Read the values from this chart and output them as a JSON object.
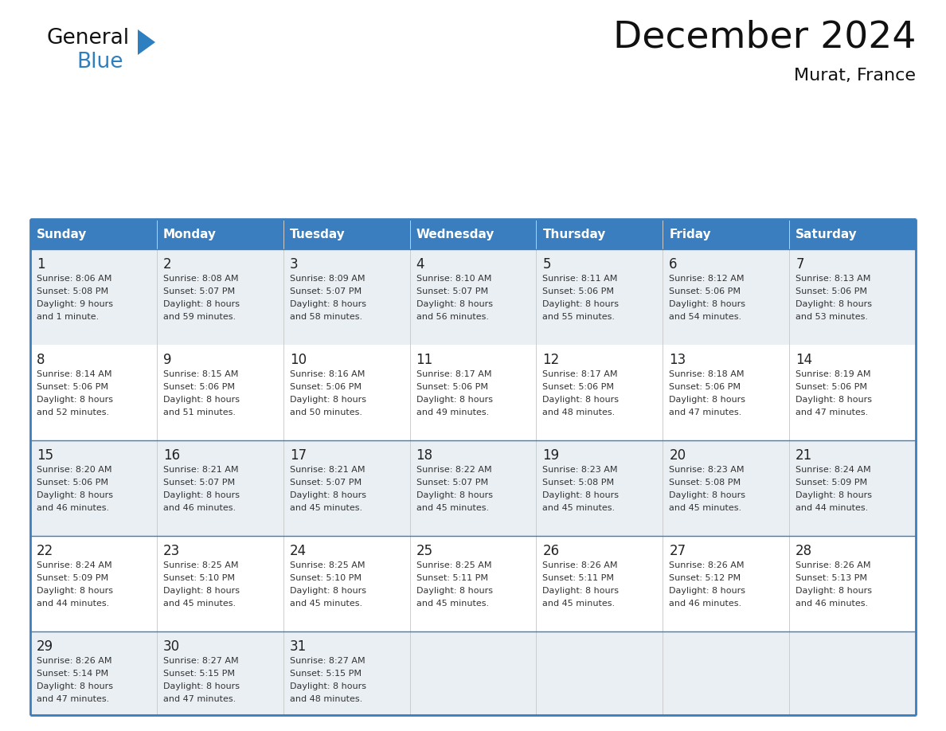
{
  "title": "December 2024",
  "subtitle": "Murat, France",
  "header_color": "#3a7ebf",
  "header_text_color": "#FFFFFF",
  "day_names": [
    "Sunday",
    "Monday",
    "Tuesday",
    "Wednesday",
    "Thursday",
    "Friday",
    "Saturday"
  ],
  "cell_bg_even": "#EAEFF4",
  "cell_bg_odd": "#FFFFFF",
  "border_color": "#3a7ebf",
  "inner_line_color": "#3a7ebf",
  "day_num_color": "#222222",
  "text_color": "#333333",
  "logo_general_color": "#111111",
  "logo_blue_color": "#2E7FBF",
  "logo_triangle_color": "#2E7FBF",
  "days": [
    {
      "day": 1,
      "col": 0,
      "row": 0,
      "sunrise": "8:06 AM",
      "sunset": "5:08 PM",
      "dl1": "Daylight: 9 hours",
      "dl2": "and 1 minute."
    },
    {
      "day": 2,
      "col": 1,
      "row": 0,
      "sunrise": "8:08 AM",
      "sunset": "5:07 PM",
      "dl1": "Daylight: 8 hours",
      "dl2": "and 59 minutes."
    },
    {
      "day": 3,
      "col": 2,
      "row": 0,
      "sunrise": "8:09 AM",
      "sunset": "5:07 PM",
      "dl1": "Daylight: 8 hours",
      "dl2": "and 58 minutes."
    },
    {
      "day": 4,
      "col": 3,
      "row": 0,
      "sunrise": "8:10 AM",
      "sunset": "5:07 PM",
      "dl1": "Daylight: 8 hours",
      "dl2": "and 56 minutes."
    },
    {
      "day": 5,
      "col": 4,
      "row": 0,
      "sunrise": "8:11 AM",
      "sunset": "5:06 PM",
      "dl1": "Daylight: 8 hours",
      "dl2": "and 55 minutes."
    },
    {
      "day": 6,
      "col": 5,
      "row": 0,
      "sunrise": "8:12 AM",
      "sunset": "5:06 PM",
      "dl1": "Daylight: 8 hours",
      "dl2": "and 54 minutes."
    },
    {
      "day": 7,
      "col": 6,
      "row": 0,
      "sunrise": "8:13 AM",
      "sunset": "5:06 PM",
      "dl1": "Daylight: 8 hours",
      "dl2": "and 53 minutes."
    },
    {
      "day": 8,
      "col": 0,
      "row": 1,
      "sunrise": "8:14 AM",
      "sunset": "5:06 PM",
      "dl1": "Daylight: 8 hours",
      "dl2": "and 52 minutes."
    },
    {
      "day": 9,
      "col": 1,
      "row": 1,
      "sunrise": "8:15 AM",
      "sunset": "5:06 PM",
      "dl1": "Daylight: 8 hours",
      "dl2": "and 51 minutes."
    },
    {
      "day": 10,
      "col": 2,
      "row": 1,
      "sunrise": "8:16 AM",
      "sunset": "5:06 PM",
      "dl1": "Daylight: 8 hours",
      "dl2": "and 50 minutes."
    },
    {
      "day": 11,
      "col": 3,
      "row": 1,
      "sunrise": "8:17 AM",
      "sunset": "5:06 PM",
      "dl1": "Daylight: 8 hours",
      "dl2": "and 49 minutes."
    },
    {
      "day": 12,
      "col": 4,
      "row": 1,
      "sunrise": "8:17 AM",
      "sunset": "5:06 PM",
      "dl1": "Daylight: 8 hours",
      "dl2": "and 48 minutes."
    },
    {
      "day": 13,
      "col": 5,
      "row": 1,
      "sunrise": "8:18 AM",
      "sunset": "5:06 PM",
      "dl1": "Daylight: 8 hours",
      "dl2": "and 47 minutes."
    },
    {
      "day": 14,
      "col": 6,
      "row": 1,
      "sunrise": "8:19 AM",
      "sunset": "5:06 PM",
      "dl1": "Daylight: 8 hours",
      "dl2": "and 47 minutes."
    },
    {
      "day": 15,
      "col": 0,
      "row": 2,
      "sunrise": "8:20 AM",
      "sunset": "5:06 PM",
      "dl1": "Daylight: 8 hours",
      "dl2": "and 46 minutes."
    },
    {
      "day": 16,
      "col": 1,
      "row": 2,
      "sunrise": "8:21 AM",
      "sunset": "5:07 PM",
      "dl1": "Daylight: 8 hours",
      "dl2": "and 46 minutes."
    },
    {
      "day": 17,
      "col": 2,
      "row": 2,
      "sunrise": "8:21 AM",
      "sunset": "5:07 PM",
      "dl1": "Daylight: 8 hours",
      "dl2": "and 45 minutes."
    },
    {
      "day": 18,
      "col": 3,
      "row": 2,
      "sunrise": "8:22 AM",
      "sunset": "5:07 PM",
      "dl1": "Daylight: 8 hours",
      "dl2": "and 45 minutes."
    },
    {
      "day": 19,
      "col": 4,
      "row": 2,
      "sunrise": "8:23 AM",
      "sunset": "5:08 PM",
      "dl1": "Daylight: 8 hours",
      "dl2": "and 45 minutes."
    },
    {
      "day": 20,
      "col": 5,
      "row": 2,
      "sunrise": "8:23 AM",
      "sunset": "5:08 PM",
      "dl1": "Daylight: 8 hours",
      "dl2": "and 45 minutes."
    },
    {
      "day": 21,
      "col": 6,
      "row": 2,
      "sunrise": "8:24 AM",
      "sunset": "5:09 PM",
      "dl1": "Daylight: 8 hours",
      "dl2": "and 44 minutes."
    },
    {
      "day": 22,
      "col": 0,
      "row": 3,
      "sunrise": "8:24 AM",
      "sunset": "5:09 PM",
      "dl1": "Daylight: 8 hours",
      "dl2": "and 44 minutes."
    },
    {
      "day": 23,
      "col": 1,
      "row": 3,
      "sunrise": "8:25 AM",
      "sunset": "5:10 PM",
      "dl1": "Daylight: 8 hours",
      "dl2": "and 45 minutes."
    },
    {
      "day": 24,
      "col": 2,
      "row": 3,
      "sunrise": "8:25 AM",
      "sunset": "5:10 PM",
      "dl1": "Daylight: 8 hours",
      "dl2": "and 45 minutes."
    },
    {
      "day": 25,
      "col": 3,
      "row": 3,
      "sunrise": "8:25 AM",
      "sunset": "5:11 PM",
      "dl1": "Daylight: 8 hours",
      "dl2": "and 45 minutes."
    },
    {
      "day": 26,
      "col": 4,
      "row": 3,
      "sunrise": "8:26 AM",
      "sunset": "5:11 PM",
      "dl1": "Daylight: 8 hours",
      "dl2": "and 45 minutes."
    },
    {
      "day": 27,
      "col": 5,
      "row": 3,
      "sunrise": "8:26 AM",
      "sunset": "5:12 PM",
      "dl1": "Daylight: 8 hours",
      "dl2": "and 46 minutes."
    },
    {
      "day": 28,
      "col": 6,
      "row": 3,
      "sunrise": "8:26 AM",
      "sunset": "5:13 PM",
      "dl1": "Daylight: 8 hours",
      "dl2": "and 46 minutes."
    },
    {
      "day": 29,
      "col": 0,
      "row": 4,
      "sunrise": "8:26 AM",
      "sunset": "5:14 PM",
      "dl1": "Daylight: 8 hours",
      "dl2": "and 47 minutes."
    },
    {
      "day": 30,
      "col": 1,
      "row": 4,
      "sunrise": "8:27 AM",
      "sunset": "5:15 PM",
      "dl1": "Daylight: 8 hours",
      "dl2": "and 47 minutes."
    },
    {
      "day": 31,
      "col": 2,
      "row": 4,
      "sunrise": "8:27 AM",
      "sunset": "5:15 PM",
      "dl1": "Daylight: 8 hours",
      "dl2": "and 48 minutes."
    }
  ]
}
